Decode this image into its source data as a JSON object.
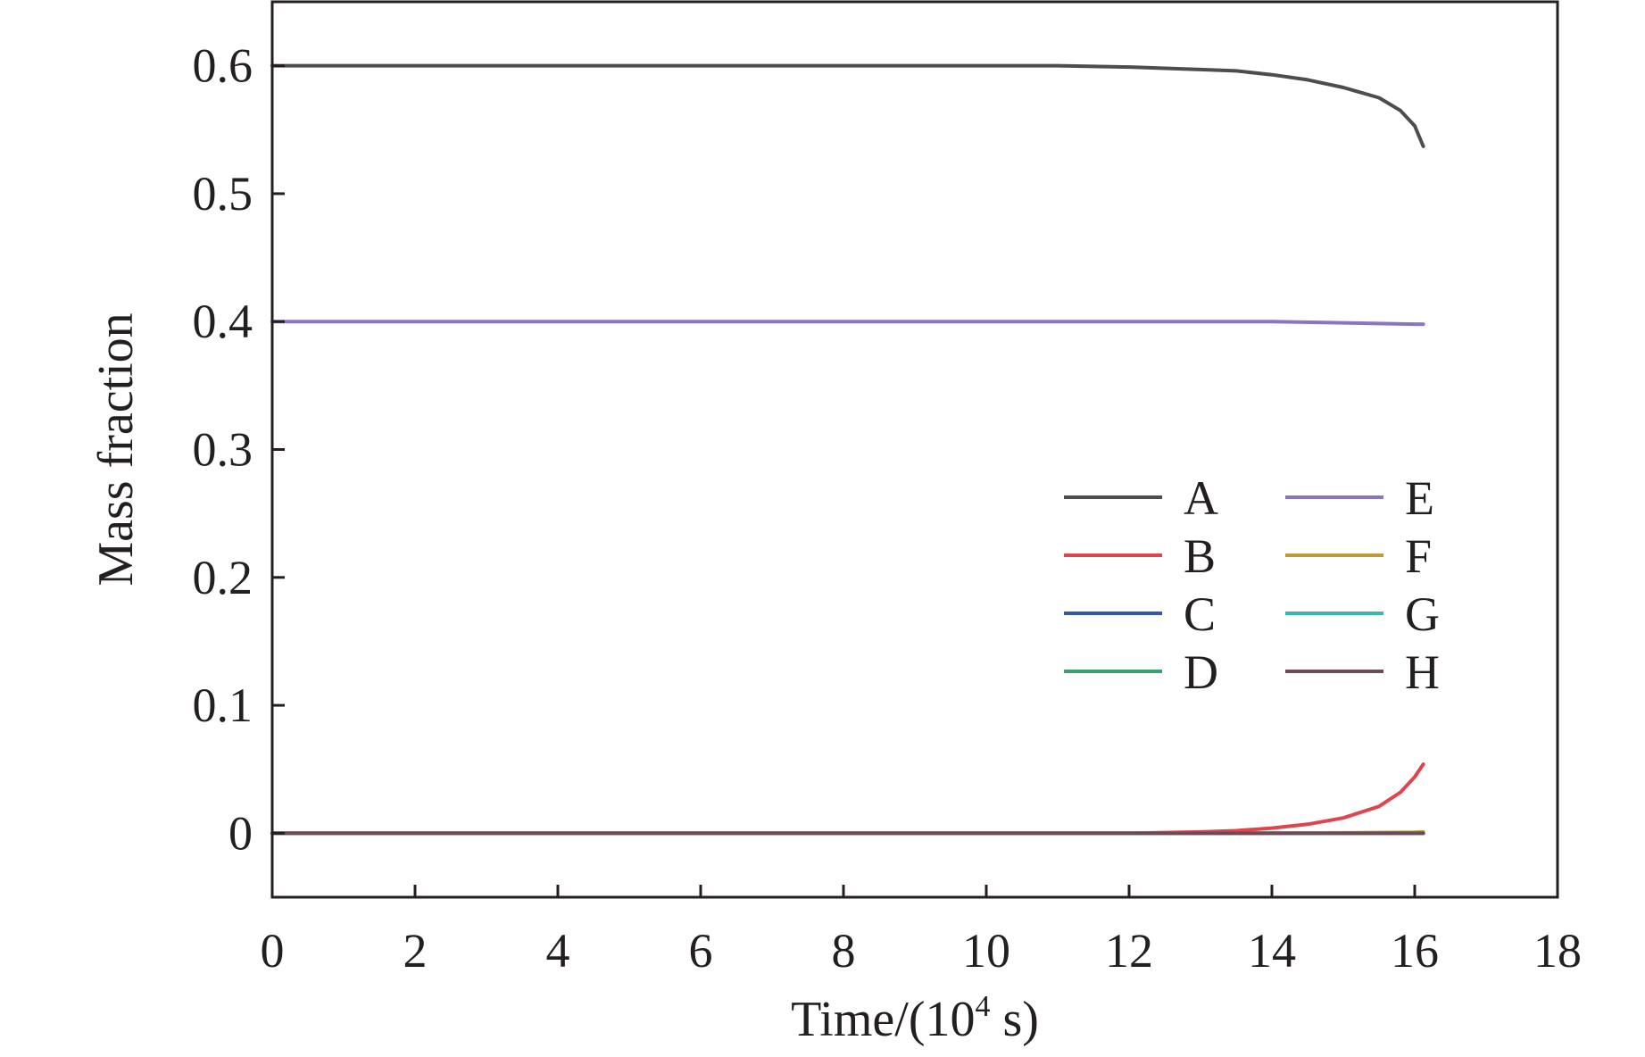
{
  "chart_data": {
    "type": "line",
    "xlabel": "Time/(10",
    "xlabel_sup": "4",
    "xlabel_tail": " s)",
    "ylabel": "Mass fraction",
    "xlim": [
      0,
      18
    ],
    "ylim": [
      -0.05,
      0.65
    ],
    "x_ticks": [
      0,
      2,
      4,
      6,
      8,
      10,
      12,
      14,
      16,
      18
    ],
    "x_tick_labels": [
      "0",
      "2",
      "4",
      "6",
      "8",
      "10",
      "12",
      "14",
      "16",
      "18"
    ],
    "y_ticks": [
      0,
      0.1,
      0.2,
      0.3,
      0.4,
      0.5,
      0.6
    ],
    "y_tick_labels": [
      "0",
      "0.1",
      "0.2",
      "0.3",
      "0.4",
      "0.5",
      "0.6"
    ],
    "grid": false,
    "legend_position": "center-right",
    "legend_columns": 2,
    "series": [
      {
        "name": "A",
        "color": "#4d4d4f",
        "x": [
          0,
          4,
          8,
          11,
          12,
          12.5,
          13,
          13.5,
          14,
          14.5,
          15,
          15.5,
          15.8,
          16,
          16.12
        ],
        "y": [
          0.6,
          0.6,
          0.6,
          0.6,
          0.599,
          0.598,
          0.597,
          0.596,
          0.593,
          0.589,
          0.583,
          0.575,
          0.565,
          0.553,
          0.537
        ]
      },
      {
        "name": "B",
        "color": "#e0444c",
        "x": [
          0,
          8,
          12,
          12.5,
          13,
          13.5,
          14,
          14.5,
          15,
          15.5,
          15.8,
          16,
          16.12
        ],
        "y": [
          0,
          0,
          0,
          0.0005,
          0.001,
          0.002,
          0.004,
          0.007,
          0.012,
          0.021,
          0.032,
          0.044,
          0.054
        ]
      },
      {
        "name": "C",
        "color": "#2e5aa8",
        "x": [
          0,
          16.12
        ],
        "y": [
          0,
          0
        ]
      },
      {
        "name": "D",
        "color": "#3aa06b",
        "x": [
          0,
          16.12
        ],
        "y": [
          0,
          0
        ]
      },
      {
        "name": "E",
        "color": "#8d73c3",
        "x": [
          0,
          8,
          14,
          15,
          16,
          16.12
        ],
        "y": [
          0.4,
          0.4,
          0.4,
          0.399,
          0.398,
          0.398
        ]
      },
      {
        "name": "F",
        "color": "#c09a3a",
        "x": [
          0,
          14,
          15,
          16,
          16.12
        ],
        "y": [
          0,
          0,
          0.0003,
          0.0008,
          0.001
        ]
      },
      {
        "name": "G",
        "color": "#39b8b0",
        "x": [
          0,
          16.12
        ],
        "y": [
          0,
          0
        ]
      },
      {
        "name": "H",
        "color": "#6e4a55",
        "x": [
          0,
          16.12
        ],
        "y": [
          0,
          0
        ]
      }
    ]
  }
}
